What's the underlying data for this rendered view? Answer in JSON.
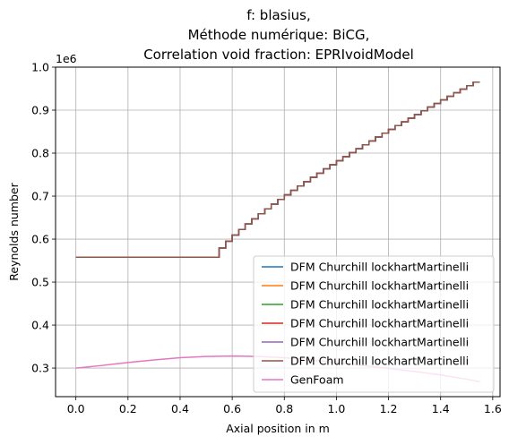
{
  "chart_data": {
    "type": "line",
    "title_lines": [
      "f: blasius,",
      "Méthode numérique: BiCG,",
      "Correlation void fraction: EPRIvoidModel"
    ],
    "xlabel": "Axial position in m",
    "ylabel": "Reynolds number",
    "y_offset_label": "1e6",
    "xlim": [
      -0.078,
      1.628
    ],
    "ylim": [
      233500,
      1000000
    ],
    "x_ticks": [
      0.0,
      0.2,
      0.4,
      0.6,
      0.8,
      1.0,
      1.2,
      1.4,
      1.6
    ],
    "x_tick_labels": [
      "0.0",
      "0.2",
      "0.4",
      "0.6",
      "0.8",
      "1.0",
      "1.2",
      "1.4",
      "1.6"
    ],
    "y_ticks": [
      300000,
      400000,
      500000,
      600000,
      700000,
      800000,
      900000,
      1000000
    ],
    "y_tick_labels": [
      "0.3",
      "0.4",
      "0.5",
      "0.6",
      "0.7",
      "0.8",
      "0.9",
      "1.0"
    ],
    "grid": true,
    "legend_position": "lower right",
    "dfm_profile": {
      "x_start": 0.0,
      "x_end": 1.55,
      "n_cells": 62,
      "flat_end_cell": 21,
      "flat_value": 558000,
      "end_value": 965000,
      "curve_exponent": 0.8
    },
    "series": [
      {
        "name": "DFM Churchill lockhartMartinelli",
        "color": "#1f77b4",
        "kind": "dfm"
      },
      {
        "name": "DFM Churchill lockhartMartinelli",
        "color": "#ff7f0e",
        "kind": "dfm"
      },
      {
        "name": "DFM Churchill lockhartMartinelli",
        "color": "#2ca02c",
        "kind": "dfm"
      },
      {
        "name": "DFM Churchill lockhartMartinelli",
        "color": "#d62728",
        "kind": "dfm"
      },
      {
        "name": "DFM Churchill lockhartMartinelli",
        "color": "#9467bd",
        "kind": "dfm"
      },
      {
        "name": "DFM Churchill lockhartMartinelli",
        "color": "#8c564b",
        "kind": "dfm"
      },
      {
        "name": "GenFoam",
        "color": "#e377c2",
        "kind": "genfoam",
        "x": [
          0.0,
          0.1,
          0.2,
          0.3,
          0.4,
          0.5,
          0.6,
          0.7,
          0.8,
          0.9,
          1.0,
          1.1,
          1.2,
          1.3,
          1.4,
          1.5,
          1.55
        ],
        "y": [
          300000,
          306000,
          313000,
          319000,
          324000,
          327000,
          328000,
          327000,
          324000,
          319000,
          313000,
          306000,
          299000,
          292000,
          284000,
          274000,
          268000
        ]
      }
    ]
  }
}
